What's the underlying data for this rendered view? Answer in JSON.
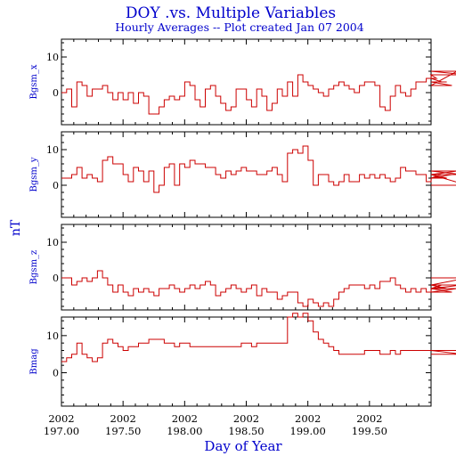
{
  "title": "DOY .vs. Multiple Variables",
  "subtitle": "Hourly Averages -- Plot created Jan 07 2004",
  "colors": {
    "text": "#0000cc",
    "line": "#cc0000",
    "axis": "#000000"
  },
  "chart_data": {
    "type": "line",
    "xlabel": "Day of Year",
    "ylabel": "nT",
    "xlim": [
      197.0,
      200.0
    ],
    "x_ticks": [
      {
        "year": "2002",
        "doy": "197.00",
        "value": 197.0
      },
      {
        "year": "2002",
        "doy": "197.50",
        "value": 197.5
      },
      {
        "year": "2002",
        "doy": "198.00",
        "value": 198.0
      },
      {
        "year": "2002",
        "doy": "198.50",
        "value": 198.5
      },
      {
        "year": "2002",
        "doy": "199.00",
        "value": 199.0
      },
      {
        "year": "2002",
        "doy": "199.50",
        "value": 199.5
      }
    ],
    "x_start": 197.0,
    "x_step": 0.0417,
    "panels": [
      {
        "name": "Bgsm_x",
        "ylim": [
          -9,
          15
        ],
        "yticks": [
          0,
          10
        ],
        "values": [
          0,
          1,
          -4,
          3,
          2,
          -1,
          1,
          1,
          2,
          0,
          -2,
          0,
          -2,
          0,
          -3,
          0,
          -1,
          -6,
          -6,
          -4,
          -2,
          -1,
          -2,
          -1,
          3,
          2,
          -2,
          -4,
          1,
          2,
          -1,
          -3,
          -5,
          -4,
          1,
          1,
          -2,
          -4,
          1,
          -1,
          -5,
          -3,
          1,
          -1,
          3,
          -1,
          5,
          3,
          2,
          1,
          0,
          -1,
          1,
          2,
          3,
          2,
          1,
          0,
          2,
          3,
          3,
          2,
          -4,
          -5,
          -1,
          2,
          0,
          -1,
          1,
          3,
          3,
          4,
          5,
          4,
          3,
          3,
          2,
          6,
          6,
          5
        ]
      },
      {
        "name": "Bgsm_y",
        "ylim": [
          -9,
          15
        ],
        "yticks": [
          0,
          10
        ],
        "values": [
          2,
          2,
          3,
          5,
          2,
          3,
          2,
          1,
          7,
          8,
          6,
          6,
          3,
          1,
          5,
          4,
          1,
          4,
          -2,
          0,
          5,
          6,
          0,
          6,
          5,
          7,
          6,
          6,
          5,
          5,
          3,
          2,
          4,
          3,
          4,
          5,
          4,
          4,
          3,
          3,
          4,
          5,
          3,
          1,
          9,
          10,
          9,
          11,
          7,
          0,
          3,
          3,
          1,
          0,
          1,
          3,
          1,
          1,
          3,
          2,
          3,
          2,
          3,
          2,
          1,
          2,
          5,
          4,
          4,
          3,
          3,
          1,
          2,
          2,
          3,
          2,
          3,
          4,
          3,
          0
        ]
      },
      {
        "name": "Bgsm_z",
        "ylim": [
          -9,
          15
        ],
        "yticks": [
          0,
          10
        ],
        "values": [
          0,
          0,
          -2,
          -1,
          0,
          -1,
          0,
          2,
          0,
          -2,
          -4,
          -2,
          -4,
          -5,
          -3,
          -4,
          -3,
          -4,
          -5,
          -3,
          -3,
          -2,
          -3,
          -4,
          -3,
          -2,
          -3,
          -2,
          -1,
          -2,
          -5,
          -4,
          -3,
          -2,
          -3,
          -4,
          -3,
          -2,
          -5,
          -3,
          -4,
          -4,
          -6,
          -5,
          -4,
          -4,
          -7,
          -8,
          -6,
          -7,
          -8,
          -7,
          -8,
          -6,
          -4,
          -3,
          -2,
          -2,
          -2,
          -3,
          -2,
          -3,
          -1,
          -1,
          0,
          -2,
          -3,
          -4,
          -3,
          -4,
          -3,
          -4,
          -3,
          -3,
          -2,
          -3,
          -4,
          -3,
          -2,
          0
        ]
      },
      {
        "name": "Bmag",
        "ylim": [
          -9,
          15
        ],
        "yticks": [
          0,
          10
        ],
        "values": [
          3,
          4,
          5,
          8,
          5,
          4,
          3,
          4,
          8,
          9,
          8,
          7,
          6,
          7,
          7,
          8,
          8,
          9,
          9,
          9,
          8,
          8,
          7,
          8,
          8,
          7,
          7,
          7,
          7,
          7,
          7,
          7,
          7,
          7,
          7,
          8,
          8,
          7,
          8,
          8,
          8,
          8,
          8,
          8,
          15,
          16,
          15,
          16,
          14,
          11,
          9,
          8,
          7,
          6,
          5,
          5,
          5,
          5,
          5,
          6,
          6,
          6,
          5,
          5,
          6,
          5,
          6,
          6,
          6,
          6,
          6,
          6,
          6,
          6,
          6,
          6,
          6,
          6,
          5,
          5
        ]
      }
    ]
  }
}
